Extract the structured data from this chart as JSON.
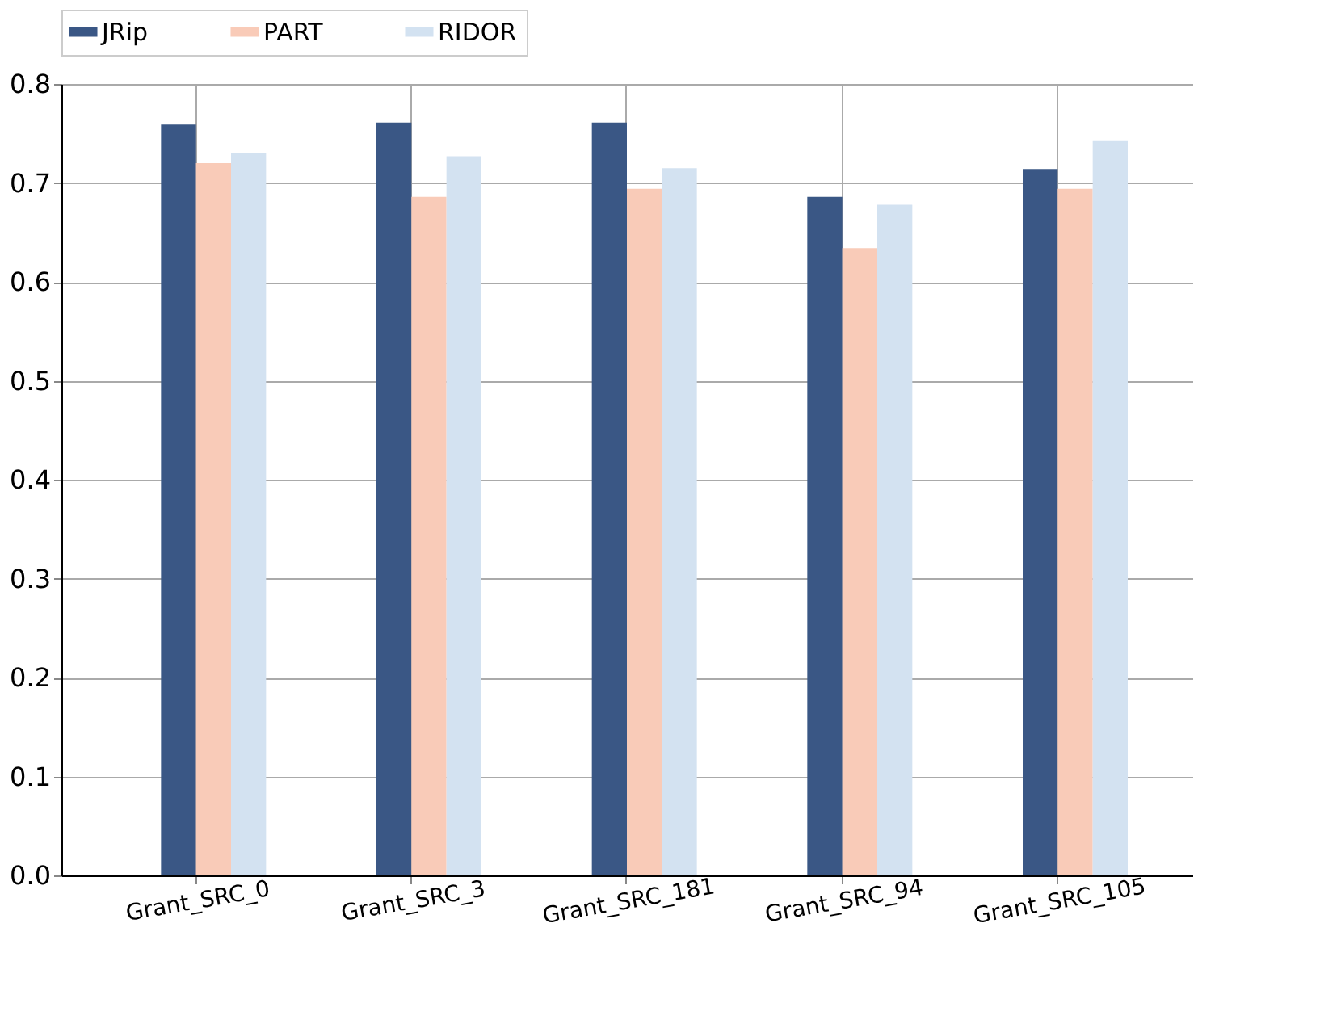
{
  "chart_data": {
    "type": "bar",
    "categories": [
      "Grant_SRC_0",
      "Grant_SRC_3",
      "Grant_SRC_181",
      "Grant_SRC_94",
      "Grant_SRC_105"
    ],
    "series": [
      {
        "name": "JRip",
        "color": "#3a5785",
        "values": [
          0.759,
          0.761,
          0.761,
          0.686,
          0.714
        ]
      },
      {
        "name": "PART",
        "color": "#f9cbb8",
        "values": [
          0.72,
          0.686,
          0.694,
          0.634,
          0.694
        ]
      },
      {
        "name": "RIDOR",
        "color": "#d3e2f1",
        "values": [
          0.73,
          0.727,
          0.715,
          0.678,
          0.743
        ]
      }
    ],
    "ylim": [
      0,
      0.8
    ],
    "yticks": [
      {
        "value": 0,
        "label": "0.0"
      },
      0.1,
      0.2,
      0.3,
      0.4,
      0.5,
      0.6,
      0.7,
      0.8
    ],
    "grid": true,
    "legend": "top"
  }
}
